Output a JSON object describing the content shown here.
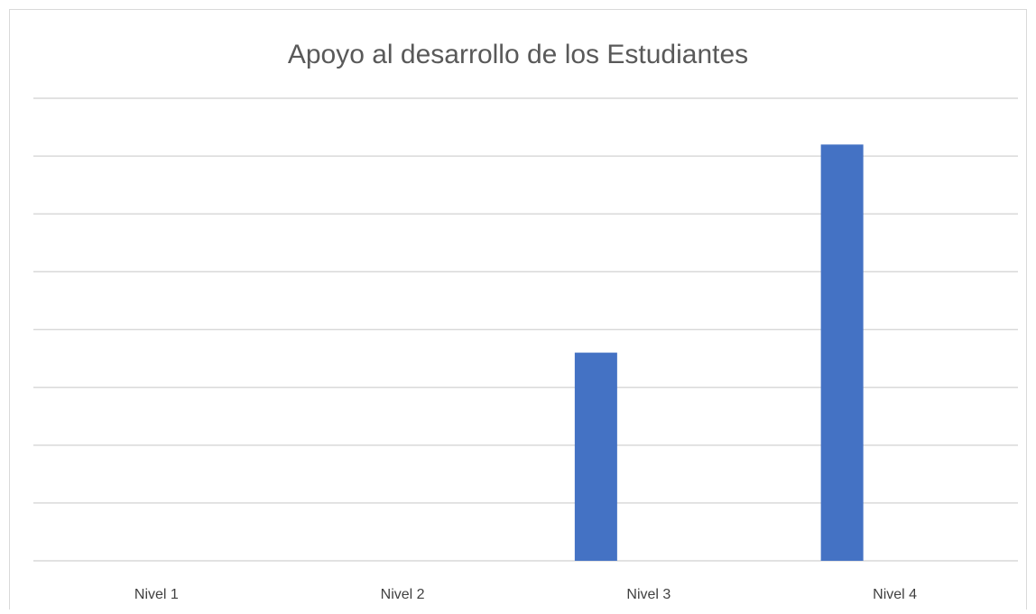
{
  "chart_data": {
    "type": "bar",
    "title": "Apoyo al desarrollo de los Estudiantes",
    "categories": [
      "Nivel 1",
      "Nivel 2",
      "Nivel 3",
      "Nivel 4"
    ],
    "values": [
      0,
      0,
      3.6,
      7.2
    ],
    "color": "#4472c4",
    "ylim": [
      0,
      8
    ],
    "yticks": [
      0,
      1,
      2,
      3,
      4,
      5,
      6,
      7,
      8
    ],
    "grid": true
  }
}
